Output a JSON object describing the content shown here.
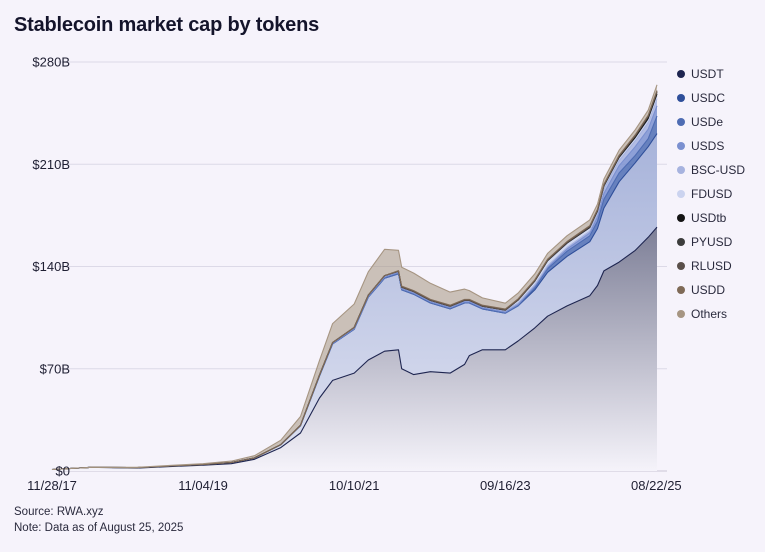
{
  "title": "Stablecoin market cap by tokens",
  "footer": {
    "source": "Source: RWA.xyz",
    "note": "Note: Data as of August 25, 2025"
  },
  "chart_data": {
    "type": "area",
    "stacked": true,
    "title": "Stablecoin market cap by tokens",
    "xlabel": "",
    "ylabel": "",
    "ylim": [
      0,
      280
    ],
    "y_unit": "$B",
    "y_ticks": [
      "$0",
      "$70B",
      "$140B",
      "$210B",
      "$280B"
    ],
    "y_tick_values": [
      0,
      70,
      140,
      210,
      280
    ],
    "x_ticks": [
      "11/28/17",
      "11/04/19",
      "10/10/21",
      "09/16/23",
      "08/22/25"
    ],
    "x_tick_dates": [
      "2017-11-28",
      "2019-11-04",
      "2021-10-10",
      "2023-09-16",
      "2025-08-22"
    ],
    "x_range": [
      "2017-11-28",
      "2025-08-25"
    ],
    "grid": "horizontal",
    "legend_position": "right",
    "x": [
      "2017-11-28",
      "2018-06-01",
      "2019-01-01",
      "2019-06-01",
      "2019-11-04",
      "2020-03-15",
      "2020-07-01",
      "2020-11-01",
      "2021-02-01",
      "2021-05-01",
      "2021-07-01",
      "2021-10-10",
      "2021-12-15",
      "2022-03-01",
      "2022-05-05",
      "2022-05-20",
      "2022-07-15",
      "2022-10-01",
      "2023-01-01",
      "2023-03-10",
      "2023-04-01",
      "2023-06-01",
      "2023-09-16",
      "2023-11-15",
      "2024-02-01",
      "2024-04-01",
      "2024-07-01",
      "2024-10-15",
      "2024-11-20",
      "2024-12-20",
      "2025-03-01",
      "2025-05-15",
      "2025-07-15",
      "2025-08-25"
    ],
    "series": [
      {
        "name": "USDT",
        "color": "#1e2550",
        "values": [
          1,
          2.5,
          2,
          3,
          4,
          5,
          8,
          16,
          26,
          50,
          62,
          67,
          76,
          82,
          83,
          70,
          66,
          68,
          67,
          73,
          79,
          83,
          83,
          89,
          98,
          106,
          113,
          120,
          127,
          137,
          143,
          151,
          160,
          167
        ]
      },
      {
        "name": "USDC",
        "color": "#2f4f9a",
        "values": [
          0,
          0,
          0.3,
          0.4,
          0.5,
          0.8,
          1,
          2,
          5,
          15,
          25,
          30,
          43,
          50,
          52,
          54,
          55,
          47,
          44,
          42,
          36,
          28,
          25,
          24,
          26,
          30,
          34,
          37,
          39,
          43,
          55,
          60,
          62,
          64
        ]
      },
      {
        "name": "USDe",
        "color": "#4e6cb3",
        "values": [
          0,
          0,
          0,
          0,
          0,
          0,
          0,
          0,
          0,
          0,
          0,
          0,
          0,
          0,
          0,
          0,
          0,
          0,
          0,
          0,
          0,
          0,
          0,
          0.2,
          1.5,
          2.5,
          3.5,
          4,
          5,
          6,
          6,
          5,
          5.5,
          12
        ]
      },
      {
        "name": "USDS",
        "color": "#7b90d0",
        "values": [
          0,
          0,
          0,
          0,
          0,
          0,
          0,
          0.1,
          0.3,
          0.4,
          0.4,
          0.5,
          0.6,
          0.8,
          0.8,
          0.8,
          0.8,
          0.8,
          0.8,
          0.8,
          0.8,
          0.8,
          0.8,
          0.8,
          1,
          1,
          1.5,
          2,
          3,
          4,
          5,
          6,
          6.5,
          7
        ]
      },
      {
        "name": "BSC-USD",
        "color": "#a7b3df",
        "values": [
          0,
          0,
          0,
          0,
          0,
          0,
          0,
          0,
          0,
          0.3,
          0.5,
          0.8,
          0.8,
          1,
          1,
          1,
          1,
          1,
          1,
          1,
          1,
          1,
          1,
          1,
          1,
          1,
          1,
          1.2,
          2,
          3,
          3.5,
          4,
          4.5,
          5
        ]
      },
      {
        "name": "FDUSD",
        "color": "#cbd3ef",
        "values": [
          0,
          0,
          0,
          0,
          0,
          0,
          0,
          0,
          0,
          0,
          0,
          0,
          0,
          0,
          0,
          0,
          0,
          0,
          0,
          0,
          0,
          0,
          0.3,
          2,
          2.5,
          3.5,
          3,
          2.5,
          2,
          2,
          1.5,
          1.2,
          1.5,
          1.5
        ]
      },
      {
        "name": "USDtb",
        "color": "#141414",
        "values": [
          0,
          0,
          0,
          0,
          0,
          0,
          0,
          0,
          0,
          0,
          0,
          0,
          0,
          0,
          0,
          0,
          0,
          0,
          0,
          0,
          0,
          0,
          0,
          0,
          0,
          0,
          0,
          0,
          0,
          0.1,
          0.7,
          1.2,
          1.4,
          1.5
        ]
      },
      {
        "name": "PYUSD",
        "color": "#3c3c3c",
        "values": [
          0,
          0,
          0,
          0,
          0,
          0,
          0,
          0,
          0,
          0,
          0,
          0,
          0,
          0,
          0,
          0,
          0,
          0,
          0,
          0,
          0,
          0,
          0.05,
          0.1,
          0.2,
          0.3,
          0.4,
          0.5,
          0.5,
          0.5,
          0.6,
          0.8,
          1,
          1.2
        ]
      },
      {
        "name": "RLUSD",
        "color": "#5a4f4a",
        "values": [
          0,
          0,
          0,
          0,
          0,
          0,
          0,
          0,
          0,
          0,
          0,
          0,
          0,
          0,
          0,
          0,
          0,
          0,
          0,
          0,
          0,
          0,
          0,
          0,
          0,
          0,
          0,
          0,
          0,
          0.05,
          0.1,
          0.2,
          0.5,
          0.6
        ]
      },
      {
        "name": "USDD",
        "color": "#7f6a57",
        "values": [
          0,
          0,
          0,
          0,
          0,
          0,
          0,
          0,
          0,
          0,
          0,
          0,
          0,
          0,
          0.3,
          0.7,
          0.7,
          0.7,
          0.7,
          0.7,
          0.7,
          0.7,
          0.7,
          0.7,
          0.7,
          0.7,
          0.7,
          0.7,
          0.7,
          0.7,
          0.7,
          0.7,
          0.6,
          0.6
        ]
      },
      {
        "name": "Others",
        "color": "#a69582",
        "values": [
          0,
          0,
          0.2,
          0.4,
          0.5,
          1,
          1.5,
          3,
          6,
          10,
          13,
          16,
          16,
          18,
          14,
          13,
          12,
          11,
          9,
          7,
          6,
          5,
          4,
          4,
          4,
          4,
          4,
          4,
          3.5,
          3.5,
          3.5,
          3.5,
          3.5,
          4
        ]
      }
    ]
  }
}
